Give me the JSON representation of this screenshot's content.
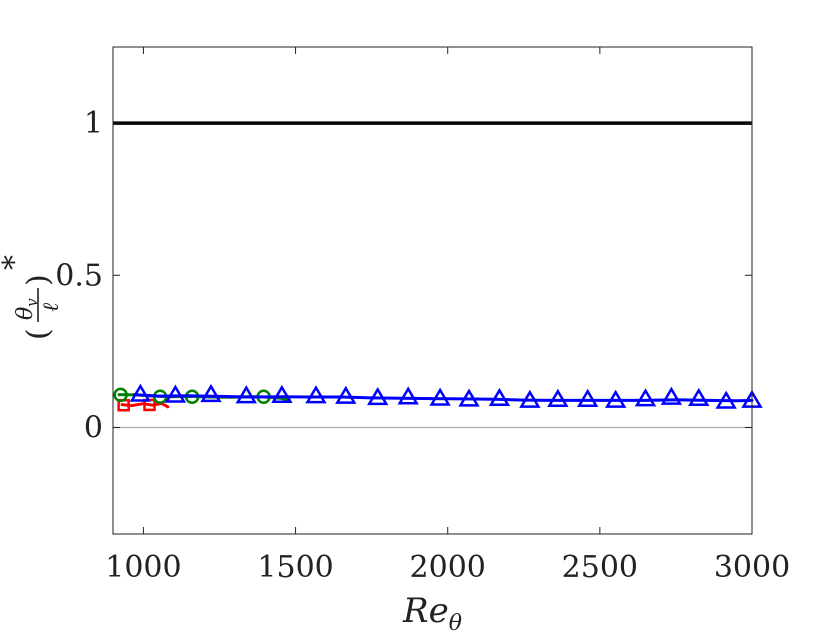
{
  "chart_data": {
    "type": "line",
    "xlabel": "Re",
    "xlabel_sub": "θ",
    "ylabel_frac_num": "θ",
    "ylabel_frac_num_sub": "v",
    "ylabel_frac_den": "ℓ",
    "ylabel_star": "*",
    "xlim": [
      900,
      3000
    ],
    "ylim": [
      -0.35,
      1.25
    ],
    "xticks": [
      1000,
      1500,
      2000,
      2500,
      3000
    ],
    "yticks": [
      0,
      0.5,
      1
    ],
    "xtick_labels": [
      "1000",
      "1500",
      "2000",
      "2500",
      "3000"
    ],
    "ytick_labels": [
      "0",
      "0.5",
      "1"
    ],
    "grid": false,
    "reference_lines": [
      {
        "y": 1,
        "color": "#000000",
        "width": "thick"
      },
      {
        "y": 0,
        "color": "#aaaaaa",
        "width": "thin"
      }
    ],
    "series": [
      {
        "color": "#ff0000",
        "marker": "square",
        "x": [
          930,
          960,
          1000,
          1030,
          1060,
          1080
        ],
        "y": [
          0.075,
          0.072,
          0.078,
          0.073,
          0.079,
          0.068
        ],
        "marker_x": [
          935,
          1020
        ],
        "marker_y": [
          0.073,
          0.074
        ]
      },
      {
        "color": "#008000",
        "marker": "circle",
        "x": [
          920,
          970,
          1020,
          1080,
          1150,
          1220,
          1290,
          1350,
          1400,
          1450,
          1480
        ],
        "y": [
          0.108,
          0.107,
          0.104,
          0.101,
          0.102,
          0.1,
          0.099,
          0.101,
          0.1,
          0.096,
          0.09
        ],
        "marker_x": [
          925,
          1055,
          1160,
          1395
        ],
        "marker_y": [
          0.107,
          0.101,
          0.101,
          0.101
        ]
      },
      {
        "color": "#0000ff",
        "marker": "triangle",
        "x": [
          970,
          1050,
          1150,
          1250,
          1350,
          1450,
          1550,
          1650,
          1750,
          1850,
          1950,
          2050,
          2150,
          2250,
          2350,
          2450,
          2550,
          2650,
          2750,
          2850,
          2950,
          3000
        ],
        "y": [
          0.108,
          0.103,
          0.104,
          0.102,
          0.1,
          0.101,
          0.1,
          0.1,
          0.097,
          0.096,
          0.095,
          0.094,
          0.093,
          0.09,
          0.089,
          0.089,
          0.089,
          0.089,
          0.091,
          0.089,
          0.088,
          0.089
        ],
        "marker_x": [
          990,
          1105,
          1222,
          1338,
          1455,
          1567,
          1665,
          1770,
          1870,
          1975,
          2070,
          2170,
          2270,
          2362,
          2460,
          2552,
          2650,
          2735,
          2825,
          2915,
          3000
        ],
        "marker_y": [
          0.108,
          0.105,
          0.107,
          0.103,
          0.104,
          0.103,
          0.101,
          0.097,
          0.099,
          0.095,
          0.092,
          0.094,
          0.088,
          0.091,
          0.091,
          0.088,
          0.093,
          0.098,
          0.094,
          0.085,
          0.088
        ]
      }
    ]
  }
}
